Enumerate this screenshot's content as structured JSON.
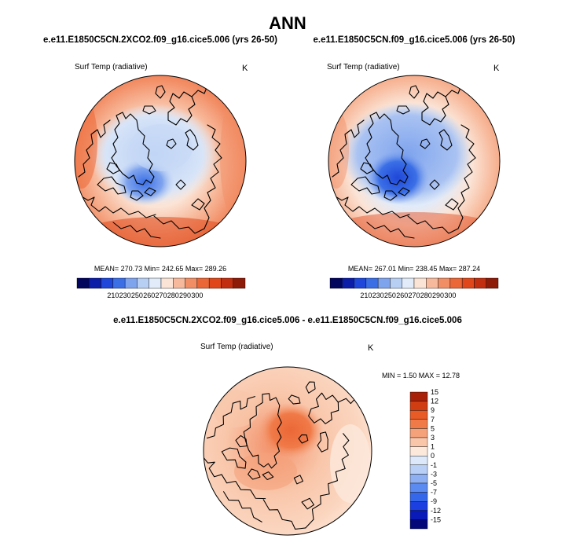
{
  "figure": {
    "title": "ANN",
    "variable": "Surf Temp (radiative)"
  },
  "chart_data": [
    {
      "type": "heatmap",
      "title": "e.e11.E1850C5CN.2XCO2.f09_g16.cice5.006 (yrs 26-50)",
      "subtitle": "Surf Temp (radiative)",
      "units": "K",
      "projection": "north-polar-stereographic",
      "stats": {
        "mean": "270.73",
        "min": "242.65",
        "max": "289.26"
      },
      "stats_label": "MEAN= 270.73  Min= 242.65  Max= 289.26",
      "colorbar_orientation": "horizontal",
      "levels": [
        210,
        230,
        250,
        260,
        270,
        280,
        290,
        300
      ],
      "colors": [
        "#02065c",
        "#0c1ea8",
        "#1f47d9",
        "#3b6fe6",
        "#7fa4ee",
        "#b8cff4",
        "#e1ebf9",
        "#fbe4d6",
        "#f7b99b",
        "#f28e66",
        "#ec6737",
        "#e0481c",
        "#c22f10",
        "#8e1a08"
      ],
      "tick_labels": [
        "210",
        "230",
        "250",
        "260",
        "270",
        "280",
        "290",
        "300"
      ]
    },
    {
      "type": "heatmap",
      "title": "e.e11.E1850C5CN.f09_g16.cice5.006 (yrs 26-50)",
      "subtitle": "Surf Temp (radiative)",
      "units": "K",
      "projection": "north-polar-stereographic",
      "stats": {
        "mean": "267.01",
        "min": "238.45",
        "max": "287.24"
      },
      "stats_label": "MEAN= 267.01  Min= 238.45  Max= 287.24",
      "colorbar_orientation": "horizontal",
      "levels": [
        210,
        230,
        250,
        260,
        270,
        280,
        290,
        300
      ],
      "colors": [
        "#02065c",
        "#0c1ea8",
        "#1f47d9",
        "#3b6fe6",
        "#7fa4ee",
        "#b8cff4",
        "#e1ebf9",
        "#fbe4d6",
        "#f7b99b",
        "#f28e66",
        "#ec6737",
        "#e0481c",
        "#c22f10",
        "#8e1a08"
      ],
      "tick_labels": [
        "210",
        "230",
        "250",
        "260",
        "270",
        "280",
        "290",
        "300"
      ]
    },
    {
      "type": "heatmap",
      "title": "e.e11.E1850C5CN.2XCO2.f09_g16.cice5.006 - e.e11.E1850C5CN.f09_g16.cice5.006",
      "subtitle": "Surf Temp (radiative)",
      "units": "K",
      "projection": "north-polar-stereographic",
      "stats": {
        "min": "1.50",
        "max": "12.78"
      },
      "stats_label": "MIN =  1.50 MAX =  12.78",
      "colorbar_orientation": "vertical",
      "levels": [
        -15,
        -12,
        -9,
        -7,
        -5,
        -3,
        -1,
        0,
        1,
        3,
        5,
        7,
        9,
        12,
        15
      ],
      "colors": [
        "#03077a",
        "#0a1ab8",
        "#1b3fe0",
        "#3567ea",
        "#5b8af0",
        "#8eb0f3",
        "#b9cff6",
        "#dde9fa",
        "#fde9dc",
        "#f9c6aa",
        "#f5a27b",
        "#f07a48",
        "#e85a26",
        "#d03d12",
        "#a82008"
      ],
      "tick_labels": [
        "-15",
        "-12",
        "-9",
        "-7",
        "-5",
        "-3",
        "-1",
        "0",
        "1",
        "3",
        "5",
        "7",
        "9",
        "12",
        "15"
      ]
    }
  ]
}
